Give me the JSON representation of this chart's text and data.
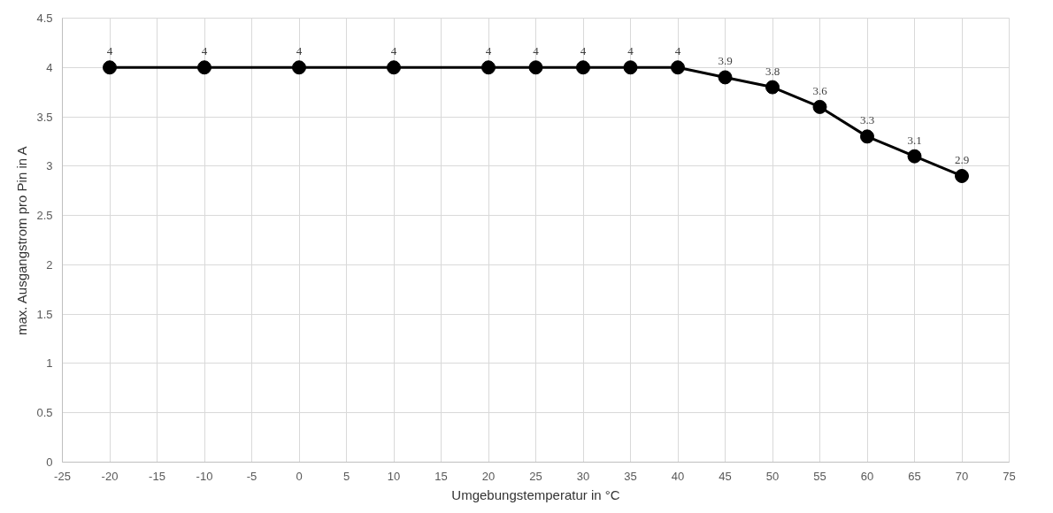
{
  "chart_data": {
    "type": "line",
    "xlabel": "Umgebungstemperatur in °C",
    "ylabel": "max. Ausgangstrom pro Pin in A",
    "x": [
      -20,
      -10,
      0,
      10,
      20,
      25,
      30,
      35,
      40,
      45,
      50,
      55,
      60,
      65,
      70
    ],
    "series": [
      {
        "color": "#000000",
        "values": [
          4,
          4,
          4,
          4,
          4,
          4,
          4,
          4,
          4,
          3.9,
          3.8,
          3.6,
          3.3,
          3.1,
          2.9
        ]
      }
    ],
    "xlim": [
      -25,
      75
    ],
    "xticks": [
      -25,
      -20,
      -15,
      -10,
      -5,
      0,
      5,
      10,
      15,
      20,
      25,
      30,
      35,
      40,
      45,
      50,
      55,
      60,
      65,
      70,
      75
    ],
    "ylim": [
      0,
      4.5
    ],
    "yticks": [
      0,
      0.5,
      1,
      1.5,
      2,
      2.5,
      3,
      3.5,
      4,
      4.5
    ],
    "grid": true,
    "data_labels": true,
    "marker": "circle",
    "line_style": "solid"
  }
}
